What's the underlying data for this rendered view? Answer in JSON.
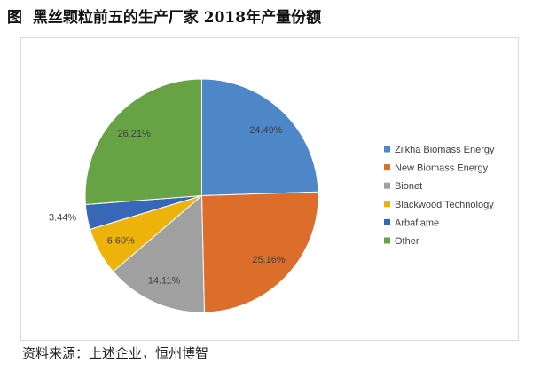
{
  "chart_data": {
    "type": "pie",
    "title": "图  黑丝颗粒前五的生产厂家 2018年产量份额",
    "categories": [
      "Zilkha Biomass Energy",
      "New Biomass Energy",
      "Bionet",
      "Blackwood Technology",
      "Arbaflame",
      "Other"
    ],
    "values": [
      24.49,
      25.16,
      14.11,
      6.6,
      3.44,
      26.21
    ],
    "data_labels": [
      "24.49%",
      "25.16%",
      "14.11%",
      "6.60%",
      "3.44%",
      "26.21%"
    ],
    "colors": [
      "#4E87C8",
      "#DD6D2B",
      "#A0A0A0",
      "#EEB30A",
      "#3867B8",
      "#67A345"
    ],
    "legend_position": "right"
  },
  "figure": {
    "source": "资料来源：上述企业，恒州博智"
  }
}
